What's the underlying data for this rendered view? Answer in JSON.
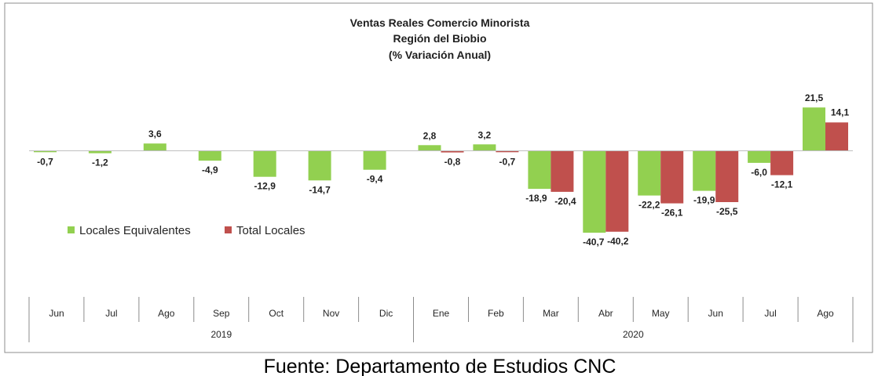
{
  "chart_data": {
    "type": "bar",
    "title": [
      "Ventas Reales Comercio Minorista",
      "Región del Biobio",
      "(% Variación Anual)"
    ],
    "categories": [
      "Jun",
      "Jul",
      "Ago",
      "Sep",
      "Oct",
      "Nov",
      "Dic",
      "Ene",
      "Feb",
      "Mar",
      "Abr",
      "May",
      "Jun",
      "Jul",
      "Ago"
    ],
    "year_groups": [
      {
        "label": "2019",
        "start": 0,
        "end": 6
      },
      {
        "label": "2020",
        "start": 7,
        "end": 14
      }
    ],
    "series": [
      {
        "name": "Locales Equivalentes",
        "color": "#92D050",
        "values": [
          -0.7,
          -1.2,
          3.6,
          -4.9,
          -12.9,
          -14.7,
          -9.4,
          2.8,
          3.2,
          -18.9,
          -40.7,
          -22.2,
          -19.9,
          -6.0,
          21.5
        ],
        "labels": [
          "-0,7",
          "-1,2",
          "3,6",
          "-4,9",
          "-12,9",
          "-14,7",
          "-9,4",
          "2,8",
          "3,2",
          "-18,9",
          "-40,7",
          "-22,2",
          "-19,9",
          "-6,0",
          "21,5"
        ]
      },
      {
        "name": "Total Locales",
        "color": "#C0504D",
        "values": [
          null,
          null,
          null,
          null,
          null,
          null,
          null,
          -0.8,
          -0.7,
          -20.4,
          -40.2,
          -26.1,
          -25.5,
          -12.1,
          14.1
        ],
        "labels": [
          "",
          "",
          "",
          "",
          "",
          "",
          "",
          "-0,8",
          "-0,7",
          "-20,4",
          "-40,2",
          "-26,1",
          "-25,5",
          "-12,1",
          "14,1"
        ]
      }
    ],
    "legend_position": "left"
  },
  "source": "Fuente: Departamento de Estudios CNC"
}
